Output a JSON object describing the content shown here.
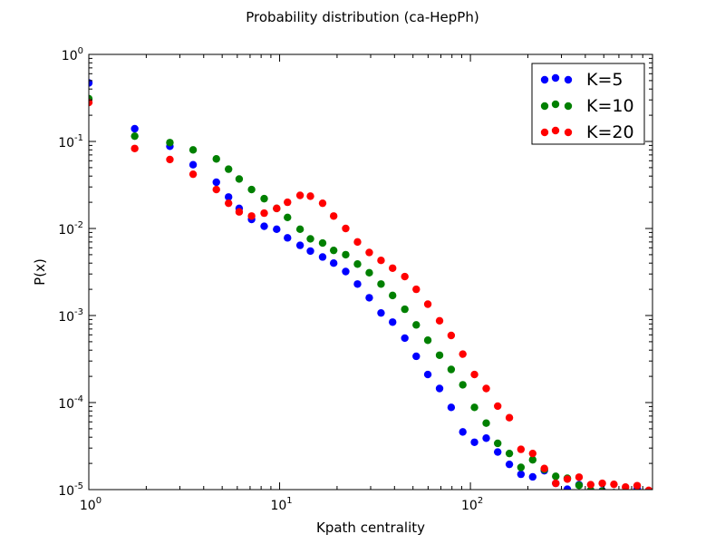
{
  "chart_data": {
    "type": "scatter",
    "title": "Probability distribution (ca-HepPh)",
    "xlabel": "Kpath centrality",
    "ylabel": "P(x)",
    "xscale": "log",
    "yscale": "log",
    "xlim": [
      1,
      900
    ],
    "ylim": [
      1e-05,
      1
    ],
    "x_ticks": [
      {
        "value": 1,
        "base": "10",
        "exp": "0"
      },
      {
        "value": 10,
        "base": "10",
        "exp": "1"
      },
      {
        "value": 100,
        "base": "10",
        "exp": "2"
      }
    ],
    "y_ticks": [
      {
        "value": 1,
        "base": "10",
        "exp": "0"
      },
      {
        "value": 0.1,
        "base": "10",
        "exp": "-1"
      },
      {
        "value": 0.01,
        "base": "10",
        "exp": "-2"
      },
      {
        "value": 0.001,
        "base": "10",
        "exp": "-3"
      },
      {
        "value": 0.0001,
        "base": "10",
        "exp": "-4"
      },
      {
        "value": 1e-05,
        "base": "10",
        "exp": "-5"
      }
    ],
    "grid": false,
    "legend_position": "top-right",
    "series": [
      {
        "name": "K=5",
        "color": "#0000ff",
        "points": [
          [
            1.0,
            0.47
          ],
          [
            1.74,
            0.14
          ],
          [
            2.66,
            0.088
          ],
          [
            3.52,
            0.054
          ],
          [
            4.66,
            0.034
          ],
          [
            5.4,
            0.023
          ],
          [
            6.14,
            0.017
          ],
          [
            7.13,
            0.0127
          ],
          [
            8.3,
            0.0106
          ],
          [
            9.65,
            0.0098
          ],
          [
            11.0,
            0.0078
          ],
          [
            12.8,
            0.0064
          ],
          [
            14.5,
            0.0055
          ],
          [
            16.8,
            0.0047
          ],
          [
            19.2,
            0.004
          ],
          [
            22.2,
            0.0032
          ],
          [
            25.6,
            0.0023
          ],
          [
            29.5,
            0.0016
          ],
          [
            34.0,
            0.00107
          ],
          [
            39.1,
            0.00084
          ],
          [
            45.3,
            0.00055
          ],
          [
            52.0,
            0.00034
          ],
          [
            59.8,
            0.00021
          ],
          [
            68.9,
            0.000145
          ],
          [
            79.3,
            8.8e-05
          ],
          [
            91.2,
            4.6e-05
          ],
          [
            105,
            3.5e-05
          ],
          [
            121,
            3.9e-05
          ],
          [
            139,
            2.7e-05
          ],
          [
            160,
            1.95e-05
          ],
          [
            184,
            1.5e-05
          ],
          [
            212,
            1.4e-05
          ],
          [
            244,
            1.65e-05
          ],
          [
            280,
            1.18e-05
          ],
          [
            322,
            1.01e-05
          ],
          [
            371,
            1.14e-05
          ],
          [
            427,
            9.8e-06
          ],
          [
            491,
            9.7e-06
          ],
          [
            565,
            9.2e-06
          ],
          [
            650,
            8.7e-06
          ],
          [
            748,
            1.02e-05
          ],
          [
            860,
            8.8e-06
          ]
        ]
      },
      {
        "name": "K=10",
        "color": "#008000",
        "points": [
          [
            1.0,
            0.31
          ],
          [
            1.74,
            0.115
          ],
          [
            2.66,
            0.097
          ],
          [
            3.52,
            0.08
          ],
          [
            4.66,
            0.063
          ],
          [
            5.4,
            0.048
          ],
          [
            6.14,
            0.037
          ],
          [
            7.13,
            0.028
          ],
          [
            8.3,
            0.022
          ],
          [
            9.65,
            0.017
          ],
          [
            11.0,
            0.0134
          ],
          [
            12.8,
            0.0098
          ],
          [
            14.5,
            0.0076
          ],
          [
            16.8,
            0.0068
          ],
          [
            19.2,
            0.0056
          ],
          [
            22.2,
            0.005
          ],
          [
            25.6,
            0.0039
          ],
          [
            29.5,
            0.0031
          ],
          [
            34.0,
            0.0023
          ],
          [
            39.1,
            0.0017
          ],
          [
            45.3,
            0.00118
          ],
          [
            52.0,
            0.00078
          ],
          [
            59.8,
            0.00052
          ],
          [
            68.9,
            0.00035
          ],
          [
            79.3,
            0.00024
          ],
          [
            91.2,
            0.00016
          ],
          [
            105,
            8.8e-05
          ],
          [
            121,
            5.8e-05
          ],
          [
            139,
            3.4e-05
          ],
          [
            160,
            2.6e-05
          ],
          [
            184,
            1.8e-05
          ],
          [
            212,
            2.2e-05
          ],
          [
            244,
            1.7e-05
          ],
          [
            280,
            1.42e-05
          ],
          [
            322,
            1.35e-05
          ],
          [
            371,
            1.12e-05
          ],
          [
            427,
            9.8e-06
          ],
          [
            491,
            9.6e-06
          ],
          [
            565,
            9.2e-06
          ],
          [
            650,
            8.8e-06
          ],
          [
            748,
            9.4e-06
          ],
          [
            860,
            8.8e-06
          ]
        ]
      },
      {
        "name": "K=20",
        "color": "#ff0000",
        "points": [
          [
            1.0,
            0.28
          ],
          [
            1.74,
            0.083
          ],
          [
            2.66,
            0.062
          ],
          [
            3.52,
            0.042
          ],
          [
            4.66,
            0.028
          ],
          [
            5.4,
            0.0195
          ],
          [
            6.14,
            0.0155
          ],
          [
            7.13,
            0.0139
          ],
          [
            8.3,
            0.015
          ],
          [
            9.65,
            0.017
          ],
          [
            11.0,
            0.02
          ],
          [
            12.8,
            0.024
          ],
          [
            14.5,
            0.0235
          ],
          [
            16.8,
            0.0195
          ],
          [
            19.2,
            0.0139
          ],
          [
            22.2,
            0.01
          ],
          [
            25.6,
            0.007
          ],
          [
            29.5,
            0.0053
          ],
          [
            34.0,
            0.0043
          ],
          [
            39.1,
            0.0035
          ],
          [
            45.3,
            0.0028
          ],
          [
            52.0,
            0.002
          ],
          [
            59.8,
            0.00135
          ],
          [
            68.9,
            0.00087
          ],
          [
            79.3,
            0.00059
          ],
          [
            91.2,
            0.00036
          ],
          [
            105,
            0.00021
          ],
          [
            121,
            0.000145
          ],
          [
            139,
            9.1e-05
          ],
          [
            160,
            6.7e-05
          ],
          [
            184,
            2.9e-05
          ],
          [
            212,
            2.6e-05
          ],
          [
            244,
            1.75e-05
          ],
          [
            280,
            1.18e-05
          ],
          [
            322,
            1.32e-05
          ],
          [
            371,
            1.39e-05
          ],
          [
            427,
            1.14e-05
          ],
          [
            491,
            1.18e-05
          ],
          [
            565,
            1.15e-05
          ],
          [
            650,
            1.07e-05
          ],
          [
            748,
            1.11e-05
          ],
          [
            860,
            9.8e-06
          ]
        ]
      }
    ]
  }
}
